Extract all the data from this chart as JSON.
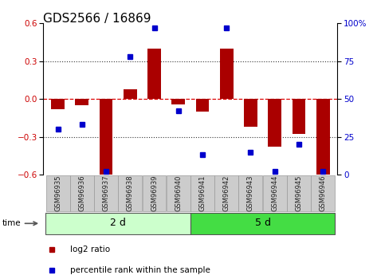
{
  "title": "GDS2566 / 16869",
  "samples": [
    "GSM96935",
    "GSM96936",
    "GSM96937",
    "GSM96938",
    "GSM96939",
    "GSM96940",
    "GSM96941",
    "GSM96942",
    "GSM96943",
    "GSM96944",
    "GSM96945",
    "GSM96946"
  ],
  "log2_ratio": [
    -0.08,
    -0.05,
    -0.6,
    0.08,
    0.4,
    -0.04,
    -0.1,
    0.4,
    -0.22,
    -0.38,
    -0.28,
    -0.6
  ],
  "percentile_rank": [
    30,
    33,
    2,
    78,
    97,
    42,
    13,
    97,
    15,
    2,
    20,
    2
  ],
  "groups": [
    {
      "label": "2 d",
      "start": 0,
      "end": 6,
      "color": "#ccffcc"
    },
    {
      "label": "5 d",
      "start": 6,
      "end": 12,
      "color": "#44dd44"
    }
  ],
  "ylim_left": [
    -0.6,
    0.6
  ],
  "ylim_right": [
    0,
    100
  ],
  "yticks_left": [
    -0.6,
    -0.3,
    0.0,
    0.3,
    0.6
  ],
  "yticks_right": [
    "0%",
    "25",
    "50",
    "75",
    "100%"
  ],
  "yticks_right_vals": [
    0,
    25,
    50,
    75,
    100
  ],
  "bar_color": "#aa0000",
  "dot_color": "#0000cc",
  "hline_color": "#dd0000",
  "dotted_color": "#333333",
  "bg_color": "#ffffff",
  "xticklabel_bg": "#cccccc",
  "xticklabel_border": "#999999",
  "title_fontsize": 11,
  "tick_fontsize": 7.5,
  "legend_fontsize": 7.5,
  "group_label_fontsize": 9,
  "sample_fontsize": 6.0
}
